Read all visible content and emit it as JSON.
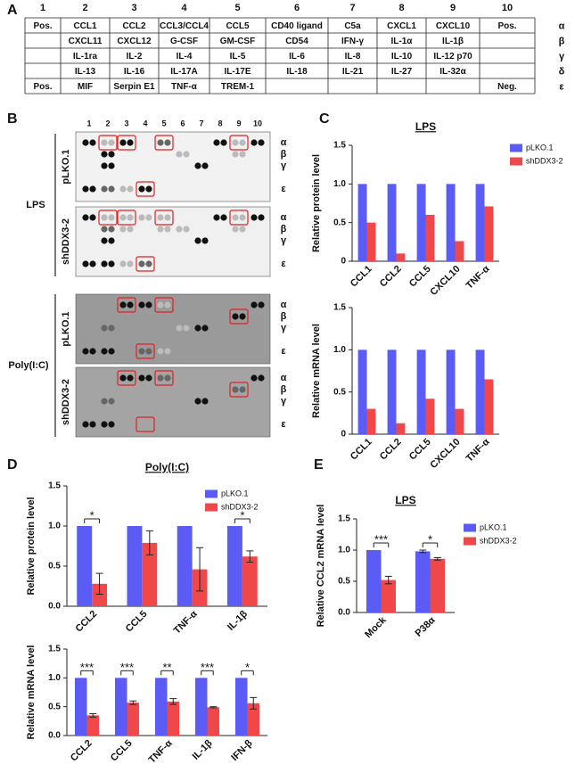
{
  "panel_labels": [
    "A",
    "B",
    "C",
    "D",
    "E"
  ],
  "table": {
    "header": [
      "1",
      "2",
      "3",
      "4",
      "5",
      "6",
      "7",
      "8",
      "9",
      "10"
    ],
    "rows": [
      {
        "label": "α",
        "cells": [
          "Pos.",
          "CCL1",
          "CCL2",
          "CCL3/CCL4",
          "CCL5",
          "CD40 ligand",
          "C5a",
          "CXCL1",
          "CXCL10",
          "Pos."
        ]
      },
      {
        "label": "β",
        "cells": [
          null,
          "CXCL11",
          "CXCL12",
          "G-CSF",
          "GM-CSF",
          "CD54",
          "IFN-γ",
          "IL-1α",
          "IL-1β",
          null
        ]
      },
      {
        "label": "γ",
        "cells": [
          null,
          "IL-1ra",
          "IL-2",
          "IL-4",
          "IL-5",
          "IL-6",
          "IL-8",
          "IL-10",
          "IL-12 p70",
          null
        ]
      },
      {
        "label": "δ",
        "cells": [
          null,
          "IL-13",
          "IL-16",
          "IL-17A",
          "IL-17E",
          "IL-18",
          "IL-21",
          "IL-27",
          "IL-32α",
          null
        ]
      },
      {
        "label": "ε",
        "cells": [
          "Pos.",
          "MIF",
          "Serpin E1",
          "TNF-α",
          "TREM-1",
          null,
          null,
          null,
          null,
          "Neg."
        ]
      }
    ]
  },
  "blots": {
    "columns": [
      "1",
      "2",
      "3",
      "4",
      "5",
      "6",
      "7",
      "8",
      "9",
      "10"
    ],
    "treatments": [
      "LPS",
      "Poly(I:C)"
    ],
    "cells": [
      "pLKO.1",
      "shDDX3-2"
    ],
    "row_labels": [
      "α",
      "β",
      "γ",
      "ε"
    ]
  },
  "chart_data": [
    {
      "type": "bar",
      "title": "LPS",
      "ylabel": "Relative protein level",
      "categories": [
        "CCL1",
        "CCL2",
        "CCL5",
        "CXCL10",
        "TNF-α"
      ],
      "series": [
        {
          "name": "pLKO.1",
          "color": "#5b5bf5",
          "values": [
            1,
            1,
            1,
            1,
            1
          ]
        },
        {
          "name": "shDDX3-2",
          "color": "#f04848",
          "values": [
            0.5,
            0.1,
            0.6,
            0.26,
            0.71
          ]
        }
      ],
      "ylim": [
        0,
        1.5
      ],
      "yticks": [
        0,
        0.5,
        {
          "value": 1,
          "label": "1.0"
        },
        1.5
      ],
      "legend": "upper right"
    },
    {
      "type": "bar",
      "ylabel": "Relative mRNA level",
      "categories": [
        "CCL1",
        "CCL2",
        "CCL5",
        "CXCL10",
        "TNF-α"
      ],
      "series": [
        {
          "color": "#5b5bf5",
          "values": [
            1,
            1,
            1,
            1,
            1
          ]
        },
        {
          "color": "#f04848",
          "values": [
            0.3,
            0.13,
            0.42,
            0.3,
            0.65
          ]
        }
      ],
      "ylim": [
        0,
        1.5
      ],
      "yticks": [
        0,
        0.5,
        {
          "value": 1,
          "label": "1.0"
        },
        1.5
      ]
    },
    {
      "type": "bar",
      "title": "Poly(I:C)",
      "ylabel": "Relative protein level",
      "categories": [
        "CCL2",
        "CCL5",
        "TNF-α",
        "IL-1β"
      ],
      "series": [
        {
          "name": "pLKO.1",
          "color": "#5b5bf5",
          "values": [
            1,
            1,
            1,
            1
          ]
        },
        {
          "name": "shDDX3-2",
          "color": "#f04848",
          "values": [
            0.28,
            0.79,
            0.46,
            0.62
          ],
          "errors": [
            0.13,
            0.15,
            0.27,
            0.07
          ]
        }
      ],
      "annotations": [
        "*",
        null,
        null,
        "*"
      ],
      "ylim": [
        0,
        1.5
      ],
      "yticks": [
        {
          "value": 0,
          "label": "0.0"
        },
        0.5,
        {
          "value": 1,
          "label": "1.0"
        },
        1.5
      ],
      "legend": "upper right"
    },
    {
      "type": "bar",
      "ylabel": "Relative mRNA level",
      "categories": [
        "CCL2",
        "CCL5",
        "TNF-α",
        "IL-1β",
        "IFN-β"
      ],
      "series": [
        {
          "color": "#5b5bf5",
          "values": [
            1,
            1,
            1,
            1,
            1
          ]
        },
        {
          "color": "#f04848",
          "values": [
            0.35,
            0.57,
            0.59,
            0.49,
            0.56
          ],
          "errors": [
            0.03,
            0.03,
            0.05,
            0.01,
            0.1
          ]
        }
      ],
      "annotations": [
        "***",
        "***",
        "**",
        "***",
        "*"
      ],
      "ylim": [
        0,
        1.5
      ],
      "yticks": [
        {
          "value": 0,
          "label": "0.0"
        },
        0.5,
        {
          "value": 1,
          "label": "1.0"
        },
        1.5
      ]
    },
    {
      "type": "bar",
      "title": "LPS",
      "ylabel": "Relative CCL2 mRNA level",
      "categories": [
        "Mock",
        "P38α"
      ],
      "series": [
        {
          "name": "pLKO.1",
          "color": "#5b5bf5",
          "values": [
            1,
            0.98
          ],
          "errors": [
            null,
            0.02
          ]
        },
        {
          "name": "shDDX3-2",
          "color": "#f04848",
          "values": [
            0.52,
            0.86
          ],
          "errors": [
            0.06,
            0.02
          ]
        }
      ],
      "annotations": [
        "***",
        "*"
      ],
      "ylim": [
        0,
        1.5
      ],
      "yticks": [
        {
          "value": 0,
          "label": "0.0"
        },
        0.5,
        {
          "value": 1,
          "label": "1.0"
        },
        1.5
      ],
      "legend": "upper right"
    }
  ]
}
